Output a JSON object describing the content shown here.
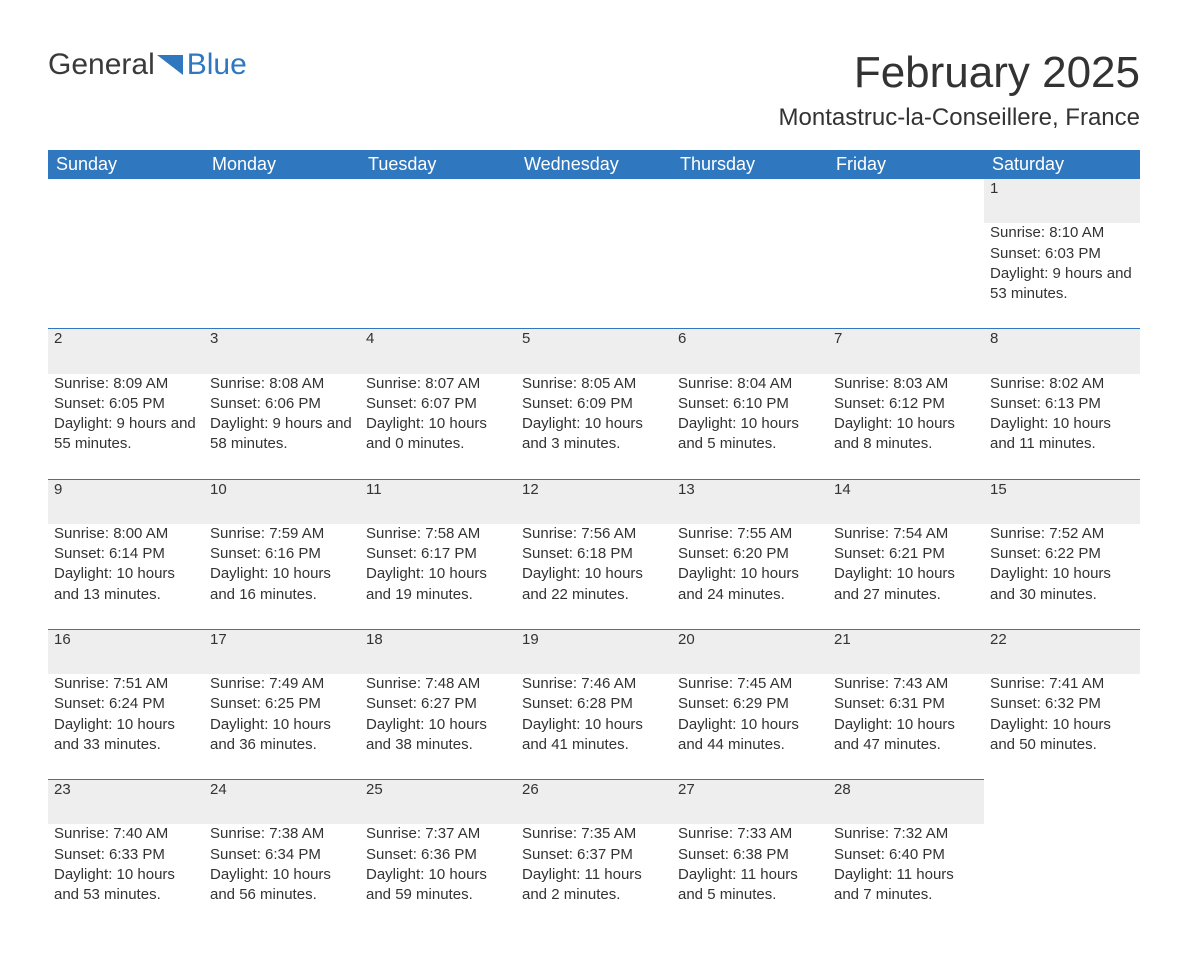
{
  "logo": {
    "text1": "General",
    "text2": "Blue",
    "triangle_color": "#2f78bf"
  },
  "title": "February 2025",
  "location": "Montastruc-la-Conseillere, France",
  "colors": {
    "header_bg": "#2f78bf",
    "header_text": "#ffffff",
    "daynum_bg": "#eeeeee",
    "row_border": "#2f78bf",
    "body_text": "#333333",
    "background": "#ffffff"
  },
  "typography": {
    "title_fontsize": 44,
    "location_fontsize": 24,
    "header_fontsize": 18,
    "daynum_fontsize": 18,
    "detail_fontsize": 15
  },
  "columns": [
    "Sunday",
    "Monday",
    "Tuesday",
    "Wednesday",
    "Thursday",
    "Friday",
    "Saturday"
  ],
  "weeks": [
    [
      null,
      null,
      null,
      null,
      null,
      null,
      {
        "n": "1",
        "sr": "Sunrise: 8:10 AM",
        "ss": "Sunset: 6:03 PM",
        "dl": "Daylight: 9 hours and 53 minutes."
      }
    ],
    [
      {
        "n": "2",
        "sr": "Sunrise: 8:09 AM",
        "ss": "Sunset: 6:05 PM",
        "dl": "Daylight: 9 hours and 55 minutes."
      },
      {
        "n": "3",
        "sr": "Sunrise: 8:08 AM",
        "ss": "Sunset: 6:06 PM",
        "dl": "Daylight: 9 hours and 58 minutes."
      },
      {
        "n": "4",
        "sr": "Sunrise: 8:07 AM",
        "ss": "Sunset: 6:07 PM",
        "dl": "Daylight: 10 hours and 0 minutes."
      },
      {
        "n": "5",
        "sr": "Sunrise: 8:05 AM",
        "ss": "Sunset: 6:09 PM",
        "dl": "Daylight: 10 hours and 3 minutes."
      },
      {
        "n": "6",
        "sr": "Sunrise: 8:04 AM",
        "ss": "Sunset: 6:10 PM",
        "dl": "Daylight: 10 hours and 5 minutes."
      },
      {
        "n": "7",
        "sr": "Sunrise: 8:03 AM",
        "ss": "Sunset: 6:12 PM",
        "dl": "Daylight: 10 hours and 8 minutes."
      },
      {
        "n": "8",
        "sr": "Sunrise: 8:02 AM",
        "ss": "Sunset: 6:13 PM",
        "dl": "Daylight: 10 hours and 11 minutes."
      }
    ],
    [
      {
        "n": "9",
        "sr": "Sunrise: 8:00 AM",
        "ss": "Sunset: 6:14 PM",
        "dl": "Daylight: 10 hours and 13 minutes."
      },
      {
        "n": "10",
        "sr": "Sunrise: 7:59 AM",
        "ss": "Sunset: 6:16 PM",
        "dl": "Daylight: 10 hours and 16 minutes."
      },
      {
        "n": "11",
        "sr": "Sunrise: 7:58 AM",
        "ss": "Sunset: 6:17 PM",
        "dl": "Daylight: 10 hours and 19 minutes."
      },
      {
        "n": "12",
        "sr": "Sunrise: 7:56 AM",
        "ss": "Sunset: 6:18 PM",
        "dl": "Daylight: 10 hours and 22 minutes."
      },
      {
        "n": "13",
        "sr": "Sunrise: 7:55 AM",
        "ss": "Sunset: 6:20 PM",
        "dl": "Daylight: 10 hours and 24 minutes."
      },
      {
        "n": "14",
        "sr": "Sunrise: 7:54 AM",
        "ss": "Sunset: 6:21 PM",
        "dl": "Daylight: 10 hours and 27 minutes."
      },
      {
        "n": "15",
        "sr": "Sunrise: 7:52 AM",
        "ss": "Sunset: 6:22 PM",
        "dl": "Daylight: 10 hours and 30 minutes."
      }
    ],
    [
      {
        "n": "16",
        "sr": "Sunrise: 7:51 AM",
        "ss": "Sunset: 6:24 PM",
        "dl": "Daylight: 10 hours and 33 minutes."
      },
      {
        "n": "17",
        "sr": "Sunrise: 7:49 AM",
        "ss": "Sunset: 6:25 PM",
        "dl": "Daylight: 10 hours and 36 minutes."
      },
      {
        "n": "18",
        "sr": "Sunrise: 7:48 AM",
        "ss": "Sunset: 6:27 PM",
        "dl": "Daylight: 10 hours and 38 minutes."
      },
      {
        "n": "19",
        "sr": "Sunrise: 7:46 AM",
        "ss": "Sunset: 6:28 PM",
        "dl": "Daylight: 10 hours and 41 minutes."
      },
      {
        "n": "20",
        "sr": "Sunrise: 7:45 AM",
        "ss": "Sunset: 6:29 PM",
        "dl": "Daylight: 10 hours and 44 minutes."
      },
      {
        "n": "21",
        "sr": "Sunrise: 7:43 AM",
        "ss": "Sunset: 6:31 PM",
        "dl": "Daylight: 10 hours and 47 minutes."
      },
      {
        "n": "22",
        "sr": "Sunrise: 7:41 AM",
        "ss": "Sunset: 6:32 PM",
        "dl": "Daylight: 10 hours and 50 minutes."
      }
    ],
    [
      {
        "n": "23",
        "sr": "Sunrise: 7:40 AM",
        "ss": "Sunset: 6:33 PM",
        "dl": "Daylight: 10 hours and 53 minutes."
      },
      {
        "n": "24",
        "sr": "Sunrise: 7:38 AM",
        "ss": "Sunset: 6:34 PM",
        "dl": "Daylight: 10 hours and 56 minutes."
      },
      {
        "n": "25",
        "sr": "Sunrise: 7:37 AM",
        "ss": "Sunset: 6:36 PM",
        "dl": "Daylight: 10 hours and 59 minutes."
      },
      {
        "n": "26",
        "sr": "Sunrise: 7:35 AM",
        "ss": "Sunset: 6:37 PM",
        "dl": "Daylight: 11 hours and 2 minutes."
      },
      {
        "n": "27",
        "sr": "Sunrise: 7:33 AM",
        "ss": "Sunset: 6:38 PM",
        "dl": "Daylight: 11 hours and 5 minutes."
      },
      {
        "n": "28",
        "sr": "Sunrise: 7:32 AM",
        "ss": "Sunset: 6:40 PM",
        "dl": "Daylight: 11 hours and 7 minutes."
      },
      null
    ]
  ]
}
